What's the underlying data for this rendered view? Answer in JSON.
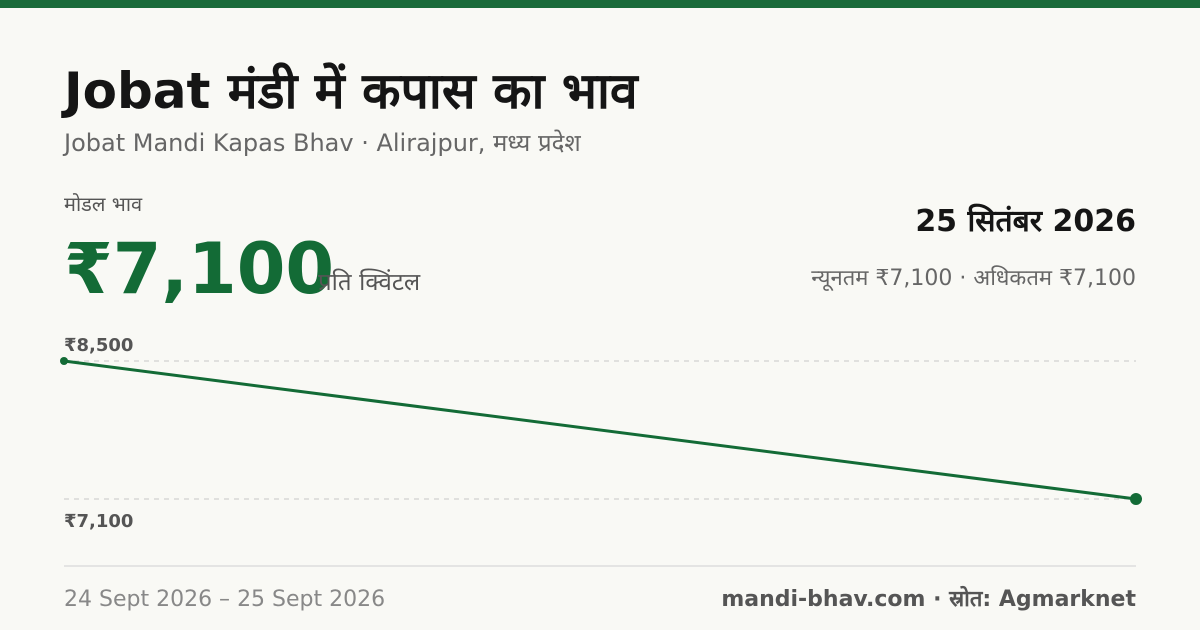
{
  "header": {
    "title": "Jobat मंडी में कपास का भाव",
    "subtitle": "Jobat Mandi Kapas Bhav · Alirajpur, मध्य प्रदेश"
  },
  "price": {
    "label": "मोडल भाव",
    "value": "₹7,100",
    "unit": "प्रति क्विंटल"
  },
  "summary": {
    "date": "25 सितंबर 2026",
    "range": "न्यूनतम ₹7,100 · अधिकतम ₹7,100"
  },
  "chart_data": {
    "type": "line",
    "x": [
      "24 Sept 2026",
      "25 Sept 2026"
    ],
    "values": [
      8500,
      7100
    ],
    "color": "#136b36",
    "ylim": [
      7100,
      8500
    ],
    "yticks": [
      {
        "value": 8500,
        "label": "₹8,500"
      },
      {
        "value": 7100,
        "label": "₹7,100"
      }
    ],
    "grid": true
  },
  "footer": {
    "source": "mandi-bhav.com · स्रोत: Agmarknet"
  }
}
